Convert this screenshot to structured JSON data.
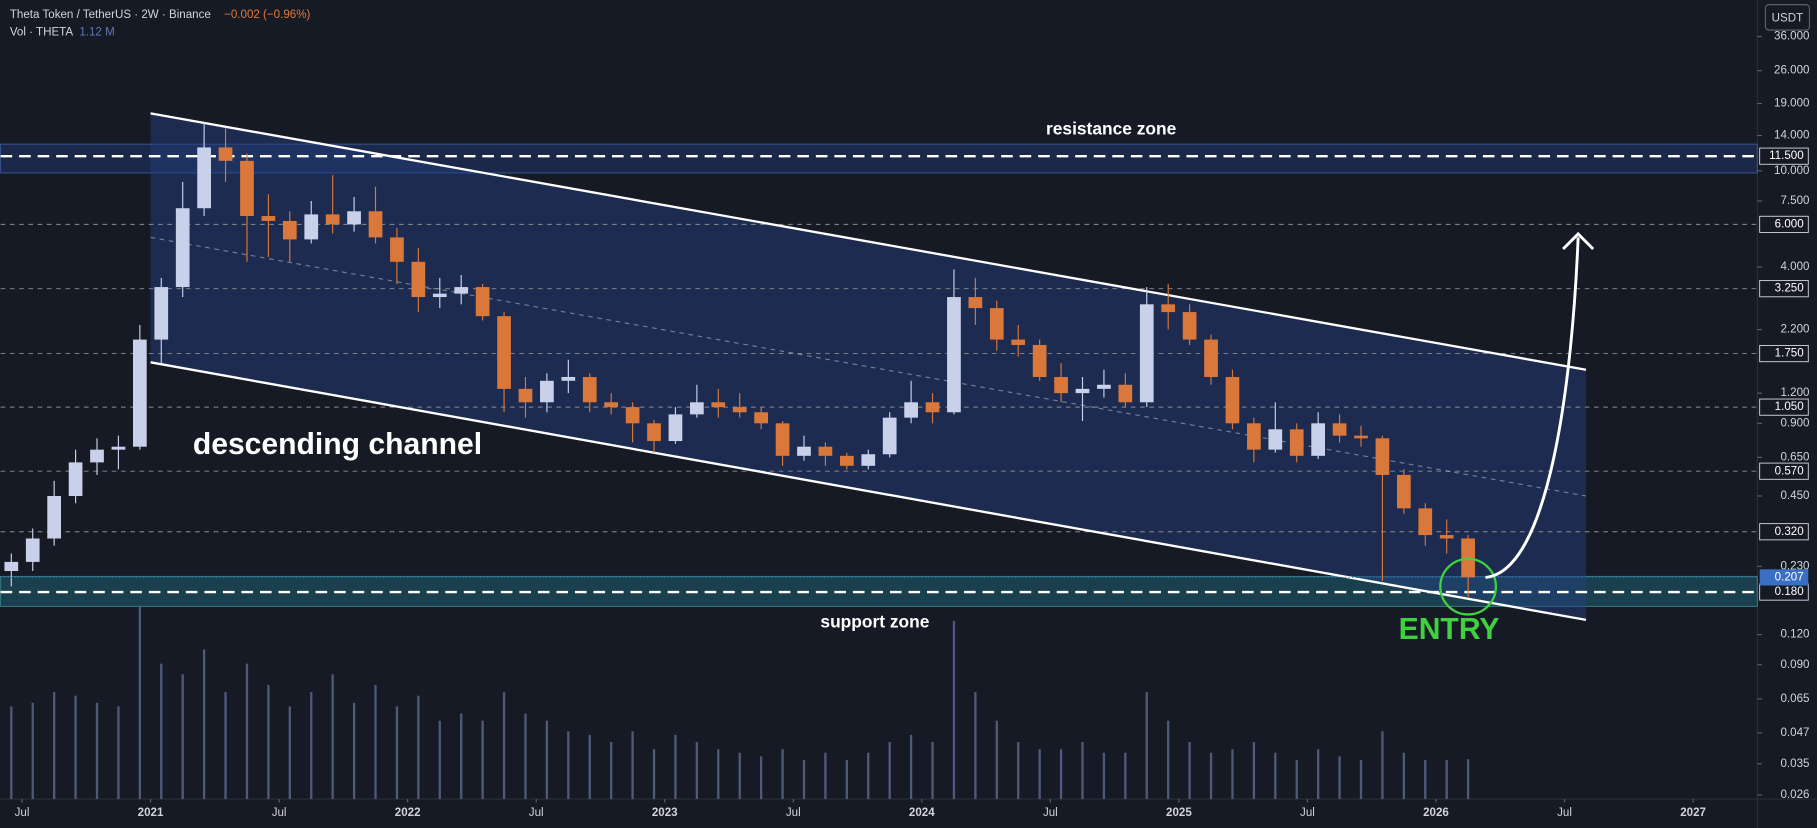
{
  "header": {
    "symbol": "Theta Token / TetherUS · 2W · Binance",
    "change": "−0.002 (−0.96%)",
    "volume_label": "Vol · THETA",
    "volume_value": "1.12 M",
    "currency": "USDT"
  },
  "chart_data": {
    "type": "candlestick",
    "x": [
      "2020-06",
      "2020-07",
      "2020-08",
      "2020-09",
      "2020-10",
      "2020-11",
      "2020-12",
      "2021-01",
      "2021-02",
      "2021-03",
      "2021-04",
      "2021-05",
      "2021-06",
      "2021-07",
      "2021-08",
      "2021-09",
      "2021-10",
      "2021-11",
      "2021-12",
      "2022-01",
      "2022-02",
      "2022-03",
      "2022-04",
      "2022-05",
      "2022-06",
      "2022-07",
      "2022-08",
      "2022-09",
      "2022-10",
      "2022-11",
      "2022-12",
      "2023-01",
      "2023-02",
      "2023-03",
      "2023-04",
      "2023-05",
      "2023-06",
      "2023-07",
      "2023-08",
      "2023-09",
      "2023-10",
      "2023-11",
      "2023-12",
      "2024-01",
      "2024-02",
      "2024-03",
      "2024-04",
      "2024-05",
      "2024-06",
      "2024-07",
      "2024-08",
      "2024-09",
      "2024-10",
      "2024-11",
      "2024-12",
      "2025-01",
      "2025-02",
      "2025-03",
      "2025-04",
      "2025-05",
      "2025-06",
      "2025-07",
      "2025-08",
      "2025-09",
      "2025-10",
      "2025-11",
      "2025-12",
      "2026-01",
      "2026-02"
    ],
    "open": [
      0.22,
      0.24,
      0.3,
      0.45,
      0.62,
      0.7,
      0.72,
      2.0,
      3.3,
      7.0,
      12.5,
      11.0,
      6.5,
      6.2,
      5.2,
      6.6,
      6.0,
      6.8,
      5.3,
      4.2,
      3.0,
      3.1,
      3.3,
      2.5,
      1.25,
      1.1,
      1.35,
      1.4,
      1.1,
      1.05,
      0.9,
      0.76,
      0.98,
      1.1,
      1.05,
      1.0,
      0.9,
      0.66,
      0.72,
      0.66,
      0.6,
      0.67,
      0.95,
      1.1,
      1.0,
      3.0,
      2.7,
      2.0,
      1.9,
      1.4,
      1.2,
      1.25,
      1.3,
      1.1,
      2.8,
      2.6,
      2.0,
      1.4,
      0.9,
      0.7,
      0.85,
      0.66,
      0.9,
      0.8,
      0.78,
      0.55,
      0.4,
      0.31,
      0.3
    ],
    "high": [
      0.26,
      0.33,
      0.52,
      0.7,
      0.78,
      0.8,
      2.3,
      3.6,
      9.0,
      15.9,
      15.0,
      11.8,
      8.0,
      6.8,
      7.5,
      9.6,
      7.8,
      8.6,
      5.8,
      4.8,
      3.6,
      3.7,
      3.4,
      2.6,
      1.4,
      1.45,
      1.65,
      1.45,
      1.2,
      1.1,
      0.93,
      1.05,
      1.3,
      1.25,
      1.2,
      1.05,
      0.92,
      0.8,
      0.75,
      0.68,
      0.7,
      1.0,
      1.35,
      1.2,
      3.9,
      3.6,
      2.9,
      2.3,
      2.0,
      1.6,
      1.4,
      1.5,
      1.45,
      3.3,
      3.4,
      2.8,
      2.1,
      1.5,
      0.95,
      1.1,
      0.9,
      1.0,
      0.98,
      0.88,
      0.8,
      0.58,
      0.42,
      0.36,
      0.31
    ],
    "low": [
      0.19,
      0.22,
      0.28,
      0.42,
      0.55,
      0.58,
      0.7,
      1.6,
      3.0,
      6.5,
      9.0,
      4.2,
      4.4,
      4.2,
      5.0,
      5.5,
      5.6,
      5.0,
      3.4,
      2.6,
      2.7,
      2.8,
      2.4,
      1.0,
      0.95,
      1.0,
      1.2,
      1.0,
      0.98,
      0.75,
      0.68,
      0.74,
      0.95,
      0.95,
      0.95,
      0.85,
      0.6,
      0.63,
      0.6,
      0.58,
      0.58,
      0.65,
      0.9,
      0.9,
      0.98,
      2.3,
      1.8,
      1.7,
      1.35,
      1.1,
      0.92,
      1.15,
      1.05,
      1.05,
      2.2,
      1.9,
      1.3,
      0.85,
      0.62,
      0.68,
      0.62,
      0.64,
      0.75,
      0.72,
      0.2,
      0.38,
      0.28,
      0.26,
      0.17
    ],
    "close": [
      0.24,
      0.3,
      0.45,
      0.62,
      0.7,
      0.72,
      2.0,
      3.3,
      7.0,
      12.5,
      11.0,
      6.5,
      6.2,
      5.2,
      6.6,
      6.0,
      6.8,
      5.3,
      4.2,
      3.0,
      3.1,
      3.3,
      2.5,
      1.25,
      1.1,
      1.35,
      1.4,
      1.1,
      1.05,
      0.9,
      0.76,
      0.98,
      1.1,
      1.05,
      1.0,
      0.9,
      0.66,
      0.72,
      0.66,
      0.6,
      0.67,
      0.95,
      1.1,
      1.0,
      3.0,
      2.7,
      2.0,
      1.9,
      1.4,
      1.2,
      1.25,
      1.3,
      1.1,
      2.8,
      2.6,
      2.0,
      1.4,
      0.9,
      0.7,
      0.85,
      0.66,
      0.9,
      0.8,
      0.78,
      0.55,
      0.4,
      0.31,
      0.3,
      0.207
    ],
    "volume": [
      2.6,
      2.7,
      3.0,
      2.9,
      2.7,
      2.6,
      5.4,
      3.8,
      3.5,
      4.2,
      3.0,
      3.8,
      3.2,
      2.6,
      3.0,
      3.5,
      2.7,
      3.2,
      2.6,
      2.9,
      2.2,
      2.4,
      2.2,
      3.0,
      2.4,
      2.2,
      1.9,
      1.8,
      1.6,
      1.9,
      1.4,
      1.8,
      1.6,
      1.4,
      1.3,
      1.2,
      1.4,
      1.1,
      1.3,
      1.1,
      1.3,
      1.6,
      1.8,
      1.6,
      5.0,
      3.0,
      2.2,
      1.6,
      1.4,
      1.4,
      1.6,
      1.3,
      1.3,
      3.0,
      2.2,
      1.6,
      1.3,
      1.4,
      1.6,
      1.3,
      1.1,
      1.4,
      1.2,
      1.1,
      1.9,
      1.3,
      1.1,
      1.1,
      1.12
    ],
    "up_color": "#c9d1ea",
    "down_color": "#d9783a",
    "volume_color": "#4e5a7a",
    "log_scale": true,
    "ylim": [
      0.025,
      51
    ],
    "volume_ylim": [
      0,
      6.5
    ],
    "yticks": [
      {
        "value": 36,
        "label": "36.000"
      },
      {
        "value": 26,
        "label": "26.000"
      },
      {
        "value": 19,
        "label": "19.000"
      },
      {
        "value": 14,
        "label": "14.000"
      },
      {
        "value": 10,
        "label": "10.000"
      },
      {
        "value": 7.5,
        "label": "7.500"
      },
      {
        "value": 4,
        "label": "4.000"
      },
      {
        "value": 2.2,
        "label": "2.200"
      },
      {
        "value": 1.2,
        "label": "1.200"
      },
      {
        "value": 0.9,
        "label": "0.900"
      },
      {
        "value": 0.65,
        "label": "0.650"
      },
      {
        "value": 0.45,
        "label": "0.450"
      },
      {
        "value": 0.23,
        "label": "0.230"
      },
      {
        "value": 0.12,
        "label": "0.120"
      },
      {
        "value": 0.09,
        "label": "0.090"
      },
      {
        "value": 0.065,
        "label": "0.065"
      },
      {
        "value": 0.047,
        "label": "0.047"
      },
      {
        "value": 0.035,
        "label": "0.035"
      },
      {
        "value": 0.026,
        "label": "0.026"
      }
    ],
    "levels": [
      {
        "value": 11.5,
        "label": "11.500",
        "bold": true
      },
      {
        "value": 6,
        "label": "6.000"
      },
      {
        "value": 3.25,
        "label": "3.250"
      },
      {
        "value": 1.75,
        "label": "1.750"
      },
      {
        "value": 1.05,
        "label": "1.050"
      },
      {
        "value": 0.57,
        "label": "0.570"
      },
      {
        "value": 0.32,
        "label": "0.320"
      },
      {
        "value": 0.18,
        "label": "0.180",
        "bold": true
      }
    ],
    "current": {
      "value": 0.207,
      "label": "0.207",
      "color": "#3a6fc4"
    },
    "xlim": [
      "2020-06",
      "2027-04"
    ],
    "xticks": [
      {
        "value": "2020-07",
        "label": "Jul"
      },
      {
        "value": "2021-01",
        "label": "2021"
      },
      {
        "value": "2021-07",
        "label": "Jul"
      },
      {
        "value": "2022-01",
        "label": "2022"
      },
      {
        "value": "2022-07",
        "label": "Jul"
      },
      {
        "value": "2023-01",
        "label": "2023"
      },
      {
        "value": "2023-07",
        "label": "Jul"
      },
      {
        "value": "2024-01",
        "label": "2024"
      },
      {
        "value": "2024-07",
        "label": "Jul"
      },
      {
        "value": "2025-01",
        "label": "2025"
      },
      {
        "value": "2025-07",
        "label": "Jul"
      },
      {
        "value": "2026-01",
        "label": "2026"
      },
      {
        "value": "2026-07",
        "label": "Jul"
      },
      {
        "value": "2027-01",
        "label": "2027"
      }
    ],
    "zones": [
      {
        "label": "resistance zone",
        "range": [
          9.8,
          12.9
        ]
      },
      {
        "label": "support zone",
        "range": [
          0.157,
          0.209
        ]
      }
    ],
    "channel": {
      "label": "descending channel",
      "upper": {
        "x": [
          "2021-01",
          "2026-08"
        ],
        "y": [
          17.3,
          1.5
        ]
      },
      "lower": {
        "x": [
          "2021-01",
          "2026-08"
        ],
        "y": [
          1.61,
          0.138
        ]
      },
      "mid": {
        "x": [
          "2021-01",
          "2026-08"
        ],
        "y": [
          5.3,
          0.45
        ]
      }
    },
    "entry": {
      "label": "ENTRY",
      "color": "#3fd13f"
    }
  }
}
